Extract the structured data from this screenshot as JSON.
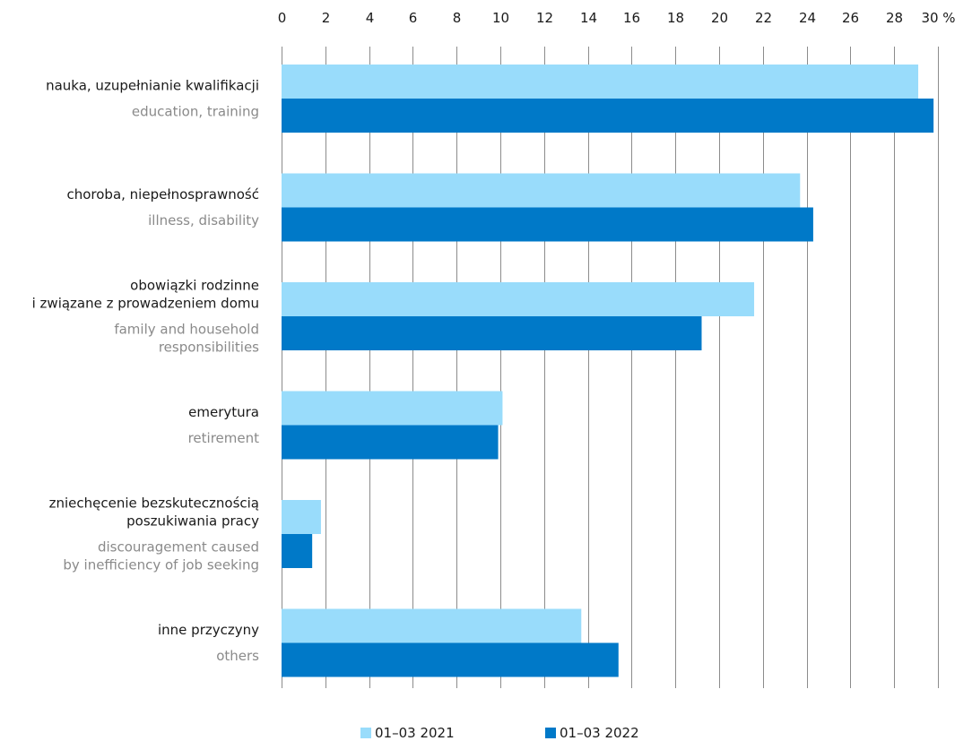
{
  "chart_data": {
    "type": "bar",
    "orientation": "horizontal",
    "axis": {
      "xlim": [
        0,
        30
      ],
      "ticks": [
        "0",
        "2",
        "4",
        "6",
        "8",
        "10",
        "12",
        "14",
        "16",
        "18",
        "20",
        "22",
        "24",
        "26",
        "28",
        "30 %"
      ],
      "grid": true,
      "position": "top"
    },
    "categories": [
      {
        "pl": [
          "nauka, uzupełnianie kwalifikacji"
        ],
        "en": [
          "education, training"
        ]
      },
      {
        "pl": [
          "choroba, niepełnosprawność"
        ],
        "en": [
          "illness, disability"
        ]
      },
      {
        "pl": [
          "obowiązki rodzinne",
          "i związane z prowadzeniem domu"
        ],
        "en": [
          "family and household",
          "responsibilities"
        ]
      },
      {
        "pl": [
          "emerytura"
        ],
        "en": [
          "retirement"
        ]
      },
      {
        "pl": [
          "zniechęcenie bezskutecznością",
          "poszukiwania pracy"
        ],
        "en": [
          "discouragement caused",
          "by inefficiency of job seeking"
        ]
      },
      {
        "pl": [
          "inne przyczyny"
        ],
        "en": [
          "others"
        ]
      }
    ],
    "series": [
      {
        "name": "01–03 2021",
        "color": "#99dcfb",
        "values": [
          29.1,
          23.7,
          21.6,
          10.1,
          1.8,
          13.7
        ]
      },
      {
        "name": "01–03 2022",
        "color": "#0079c8",
        "values": [
          29.8,
          24.3,
          19.2,
          9.9,
          1.4,
          15.4
        ]
      }
    ],
    "legend": "bottom-center"
  }
}
